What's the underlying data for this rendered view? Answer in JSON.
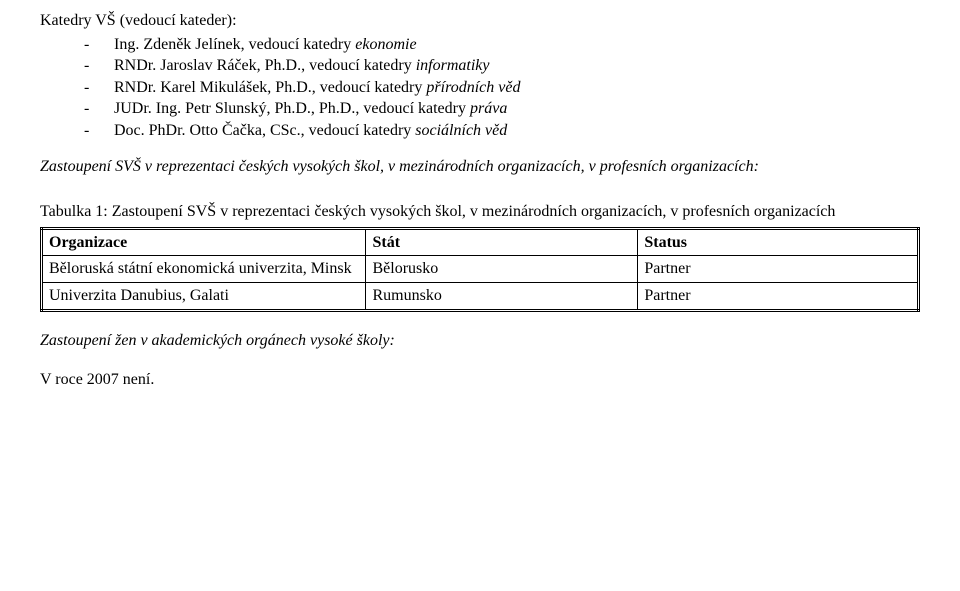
{
  "heading": "Katedry VŠ (vedoucí kateder):",
  "katedry": [
    {
      "person": "Ing. Zdeněk Jelínek, vedoucí katedry ",
      "dept": "ekonomie"
    },
    {
      "person": "RNDr. Jaroslav Ráček, Ph.D., vedoucí katedry ",
      "dept": "informatiky"
    },
    {
      "person": "RNDr. Karel Mikulášek, Ph.D., vedoucí katedry ",
      "dept": "přírodních věd"
    },
    {
      "person": "JUDr. Ing. Petr Slunský, Ph.D., Ph.D., vedoucí katedry ",
      "dept": "práva"
    },
    {
      "person": "Doc. PhDr. Otto Čačka, CSc., vedoucí katedry ",
      "dept": "sociálních věd"
    }
  ],
  "para1": "Zastoupení SVŠ v reprezentaci českých vysokých škol, v mezinárodních organizacích, v profesních organizacích:",
  "tableCaption": "Tabulka 1: Zastoupení SVŠ v reprezentaci českých vysokých škol, v mezinárodních organizacích, v profesních organizacích",
  "table": {
    "columns": [
      "Organizace",
      "Stát",
      "Status"
    ],
    "rows": [
      [
        "Běloruská státní ekonomická univerzita, Minsk",
        "Bělorusko",
        "Partner"
      ],
      [
        "Univerzita Danubius, Galati",
        "Rumunsko",
        "Partner"
      ]
    ]
  },
  "para2": "Zastoupení žen v akademických orgánech vysoké školy:",
  "para3": "V roce 2007 není."
}
